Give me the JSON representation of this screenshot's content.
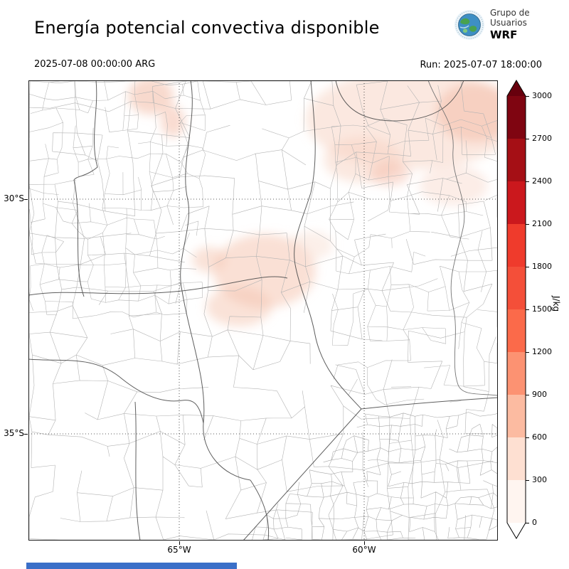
{
  "header": {
    "title": "Energía potencial convectiva disponible",
    "valid_time": "2025-07-08 00:00:00 ARG",
    "run_label": "Run: 2025-07-07 18:00:00"
  },
  "logo": {
    "line1": "Grupo de",
    "line2": "Usuarios",
    "line3": "WRF"
  },
  "map": {
    "lat_ticks": [
      {
        "label": "30°S"
      },
      {
        "label": "35°S"
      }
    ],
    "lon_ticks": [
      {
        "label": "65°W"
      },
      {
        "label": "60°W"
      }
    ]
  },
  "colorbar": {
    "unit_label": "J/kg",
    "ticks": [
      "3000",
      "2700",
      "2400",
      "2100",
      "1800",
      "1500",
      "1200",
      "900",
      "600",
      "300",
      "0"
    ],
    "segments_top_to_bottom": [
      "#7f0511",
      "#a50f15",
      "#cb181d",
      "#ef3b2c",
      "#f44f39",
      "#fb6a4a",
      "#fc9272",
      "#fcbba1",
      "#fee0d2",
      "#fff5f0"
    ],
    "over_color": "#67000d",
    "under_color": "#ffffff"
  },
  "accents": {
    "footer_bar_color": "#3a6fc8"
  },
  "chart_data": {
    "type": "heatmap",
    "title": "Energía potencial convectiva disponible",
    "valid_time": "2025-07-08 00:00:00 ARG",
    "model_run": "Run: 2025-07-07 18:00:00",
    "x_ticks": [
      "65°W",
      "60°W"
    ],
    "y_ticks": [
      "30°S",
      "35°S"
    ],
    "colorbar": {
      "label": "J/kg",
      "min": 0,
      "max": 3000,
      "tick_step": 300,
      "extend": "both"
    },
    "field_summary": "CAPE near 0 J/kg over most of the domain; faint patches below ~300 J/kg in the northeast, northwest and center of the map"
  }
}
